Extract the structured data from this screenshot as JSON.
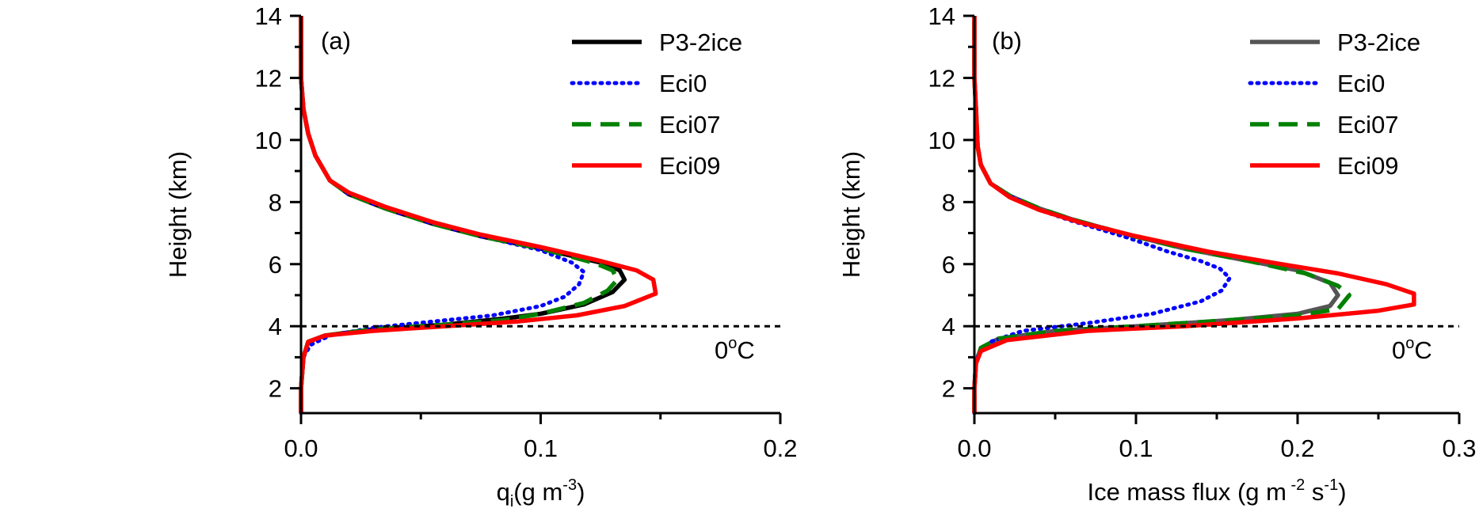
{
  "chart_data": [
    {
      "type": "line",
      "panel_label": "(a)",
      "xlabel": {
        "main": "q",
        "sub": "i",
        "rest": "(g m",
        "sup": "-3",
        "end": ")"
      },
      "ylabel": "Height (km)",
      "xlim": [
        0,
        0.2
      ],
      "ylim": [
        1.2,
        14
      ],
      "xticks": [
        0,
        0.1,
        0.2
      ],
      "xtick_labels": [
        "0.0",
        "0.1",
        "0.2"
      ],
      "yticks": [
        2,
        4,
        6,
        8,
        10,
        12,
        14
      ],
      "ytick_labels": [
        "2",
        "4",
        "6",
        "8",
        "10",
        "12",
        "14"
      ],
      "grid": false,
      "legend_position": "top-right",
      "annotation": {
        "base": "0",
        "sup": "o",
        "rest": "C",
        "value": 4
      },
      "series": [
        {
          "name": "P3-2ice",
          "color": "#000000",
          "style": "solid",
          "points": [
            [
              0,
              1.2
            ],
            [
              0,
              2
            ],
            [
              0.001,
              3
            ],
            [
              0.003,
              3.5
            ],
            [
              0.01,
              3.7
            ],
            [
              0.03,
              3.9
            ],
            [
              0.06,
              4.05
            ],
            [
              0.085,
              4.25
            ],
            [
              0.1,
              4.4
            ],
            [
              0.118,
              4.7
            ],
            [
              0.13,
              5.1
            ],
            [
              0.135,
              5.5
            ],
            [
              0.133,
              5.8
            ],
            [
              0.125,
              6.05
            ],
            [
              0.1,
              6.5
            ],
            [
              0.075,
              6.9
            ],
            [
              0.055,
              7.3
            ],
            [
              0.035,
              7.8
            ],
            [
              0.02,
              8.25
            ],
            [
              0.012,
              8.7
            ],
            [
              0.006,
              9.5
            ],
            [
              0.003,
              10.2
            ],
            [
              0.001,
              11
            ],
            [
              0,
              12
            ],
            [
              0,
              14
            ]
          ]
        },
        {
          "name": "Eci0",
          "color": "#0000ff",
          "style": "dotted",
          "points": [
            [
              0,
              1.2
            ],
            [
              0,
              2
            ],
            [
              0.001,
              3
            ],
            [
              0.004,
              3.4
            ],
            [
              0.012,
              3.7
            ],
            [
              0.03,
              3.95
            ],
            [
              0.055,
              4.15
            ],
            [
              0.08,
              4.35
            ],
            [
              0.1,
              4.65
            ],
            [
              0.11,
              4.95
            ],
            [
              0.116,
              5.35
            ],
            [
              0.118,
              5.75
            ],
            [
              0.113,
              6.05
            ],
            [
              0.1,
              6.45
            ],
            [
              0.075,
              6.9
            ],
            [
              0.055,
              7.3
            ],
            [
              0.035,
              7.8
            ],
            [
              0.02,
              8.25
            ],
            [
              0.012,
              8.7
            ],
            [
              0.006,
              9.5
            ],
            [
              0.003,
              10.2
            ],
            [
              0.001,
              11
            ],
            [
              0,
              12
            ],
            [
              0,
              14
            ]
          ]
        },
        {
          "name": "Eci07",
          "color": "#008000",
          "style": "dashed",
          "points": [
            [
              0,
              1.2
            ],
            [
              0,
              2
            ],
            [
              0.001,
              3
            ],
            [
              0.003,
              3.5
            ],
            [
              0.01,
              3.7
            ],
            [
              0.03,
              3.9
            ],
            [
              0.06,
              4.05
            ],
            [
              0.085,
              4.2
            ],
            [
              0.1,
              4.4
            ],
            [
              0.118,
              4.75
            ],
            [
              0.128,
              5.15
            ],
            [
              0.132,
              5.5
            ],
            [
              0.13,
              5.8
            ],
            [
              0.122,
              6.05
            ],
            [
              0.1,
              6.5
            ],
            [
              0.075,
              6.9
            ],
            [
              0.055,
              7.3
            ],
            [
              0.035,
              7.8
            ],
            [
              0.02,
              8.25
            ],
            [
              0.012,
              8.7
            ],
            [
              0.006,
              9.5
            ],
            [
              0.003,
              10.2
            ],
            [
              0.001,
              11
            ],
            [
              0,
              12
            ],
            [
              0,
              14
            ]
          ]
        },
        {
          "name": "Eci09",
          "color": "#ff0000",
          "style": "solid",
          "points": [
            [
              0,
              1.2
            ],
            [
              0,
              2
            ],
            [
              0.001,
              3
            ],
            [
              0.003,
              3.5
            ],
            [
              0.01,
              3.7
            ],
            [
              0.03,
              3.85
            ],
            [
              0.06,
              4
            ],
            [
              0.09,
              4.15
            ],
            [
              0.115,
              4.35
            ],
            [
              0.135,
              4.65
            ],
            [
              0.148,
              5.05
            ],
            [
              0.147,
              5.5
            ],
            [
              0.14,
              5.8
            ],
            [
              0.125,
              6.1
            ],
            [
              0.1,
              6.55
            ],
            [
              0.075,
              6.95
            ],
            [
              0.055,
              7.35
            ],
            [
              0.035,
              7.85
            ],
            [
              0.02,
              8.3
            ],
            [
              0.012,
              8.7
            ],
            [
              0.006,
              9.5
            ],
            [
              0.003,
              10.2
            ],
            [
              0.001,
              11
            ],
            [
              0,
              12
            ],
            [
              0,
              14
            ]
          ]
        }
      ]
    },
    {
      "type": "line",
      "panel_label": "(b)",
      "xlabel": {
        "main": "Ice mass flux (g m",
        "sup": " -2",
        "mid": " s",
        "sup2": "-1",
        "end": ")"
      },
      "ylabel": "Height (km)",
      "xlim": [
        0,
        0.3
      ],
      "ylim": [
        1.2,
        14
      ],
      "xticks": [
        0,
        0.1,
        0.2,
        0.3
      ],
      "xtick_labels": [
        "0.0",
        "0.1",
        "0.2",
        "0.3"
      ],
      "yticks": [
        2,
        4,
        6,
        8,
        10,
        12,
        14
      ],
      "ytick_labels": [
        "2",
        "4",
        "6",
        "8",
        "10",
        "12",
        "14"
      ],
      "grid": false,
      "legend_position": "top-right",
      "annotation": {
        "base": "0",
        "sup": "o",
        "rest": "C",
        "value": 4
      },
      "series": [
        {
          "name": "P3-2ice",
          "color": "#555555",
          "style": "solid",
          "points": [
            [
              0,
              1.2
            ],
            [
              0,
              2
            ],
            [
              0.001,
              2.8
            ],
            [
              0.004,
              3.3
            ],
            [
              0.015,
              3.6
            ],
            [
              0.05,
              3.85
            ],
            [
              0.1,
              4
            ],
            [
              0.16,
              4.2
            ],
            [
              0.2,
              4.4
            ],
            [
              0.22,
              4.65
            ],
            [
              0.225,
              5
            ],
            [
              0.22,
              5.4
            ],
            [
              0.2,
              5.8
            ],
            [
              0.17,
              6.1
            ],
            [
              0.13,
              6.5
            ],
            [
              0.095,
              6.95
            ],
            [
              0.06,
              7.45
            ],
            [
              0.04,
              7.8
            ],
            [
              0.022,
              8.2
            ],
            [
              0.01,
              8.6
            ],
            [
              0.004,
              9.2
            ],
            [
              0.002,
              9.8
            ],
            [
              0.001,
              11
            ],
            [
              0,
              12
            ],
            [
              0,
              14
            ]
          ]
        },
        {
          "name": "Eci0",
          "color": "#0000ff",
          "style": "dotted",
          "points": [
            [
              0,
              1.2
            ],
            [
              0,
              2
            ],
            [
              0.001,
              2.8
            ],
            [
              0.003,
              3.2
            ],
            [
              0.01,
              3.5
            ],
            [
              0.03,
              3.85
            ],
            [
              0.07,
              4.1
            ],
            [
              0.11,
              4.4
            ],
            [
              0.14,
              4.8
            ],
            [
              0.153,
              5.15
            ],
            [
              0.158,
              5.55
            ],
            [
              0.152,
              5.85
            ],
            [
              0.14,
              6.1
            ],
            [
              0.12,
              6.4
            ],
            [
              0.095,
              6.85
            ],
            [
              0.06,
              7.4
            ],
            [
              0.04,
              7.75
            ],
            [
              0.022,
              8.2
            ],
            [
              0.01,
              8.6
            ],
            [
              0.004,
              9.2
            ],
            [
              0.002,
              9.8
            ],
            [
              0.001,
              11
            ],
            [
              0,
              12
            ],
            [
              0,
              14
            ]
          ]
        },
        {
          "name": "Eci07",
          "color": "#008000",
          "style": "dashed",
          "points": [
            [
              0,
              1.2
            ],
            [
              0,
              2
            ],
            [
              0.001,
              2.8
            ],
            [
              0.004,
              3.3
            ],
            [
              0.015,
              3.6
            ],
            [
              0.05,
              3.85
            ],
            [
              0.1,
              4
            ],
            [
              0.16,
              4.2
            ],
            [
              0.2,
              4.35
            ],
            [
              0.225,
              4.55
            ],
            [
              0.232,
              5
            ],
            [
              0.225,
              5.3
            ],
            [
              0.205,
              5.7
            ],
            [
              0.17,
              6.1
            ],
            [
              0.13,
              6.5
            ],
            [
              0.095,
              6.95
            ],
            [
              0.06,
              7.45
            ],
            [
              0.04,
              7.8
            ],
            [
              0.022,
              8.2
            ],
            [
              0.01,
              8.6
            ],
            [
              0.004,
              9.2
            ],
            [
              0.002,
              9.8
            ],
            [
              0.001,
              11
            ],
            [
              0,
              12
            ],
            [
              0,
              14
            ]
          ]
        },
        {
          "name": "Eci09",
          "color": "#ff0000",
          "style": "solid",
          "points": [
            [
              0,
              1.2
            ],
            [
              0,
              2
            ],
            [
              0.001,
              2.8
            ],
            [
              0.004,
              3.2
            ],
            [
              0.02,
              3.55
            ],
            [
              0.07,
              3.85
            ],
            [
              0.13,
              4
            ],
            [
              0.2,
              4.25
            ],
            [
              0.25,
              4.5
            ],
            [
              0.272,
              4.7
            ],
            [
              0.272,
              5.05
            ],
            [
              0.255,
              5.35
            ],
            [
              0.225,
              5.7
            ],
            [
              0.19,
              6
            ],
            [
              0.145,
              6.4
            ],
            [
              0.1,
              6.9
            ],
            [
              0.065,
              7.35
            ],
            [
              0.04,
              7.75
            ],
            [
              0.022,
              8.15
            ],
            [
              0.01,
              8.6
            ],
            [
              0.004,
              9.2
            ],
            [
              0.002,
              9.8
            ],
            [
              0.001,
              11
            ],
            [
              0,
              12
            ],
            [
              0,
              14
            ]
          ]
        }
      ]
    }
  ]
}
